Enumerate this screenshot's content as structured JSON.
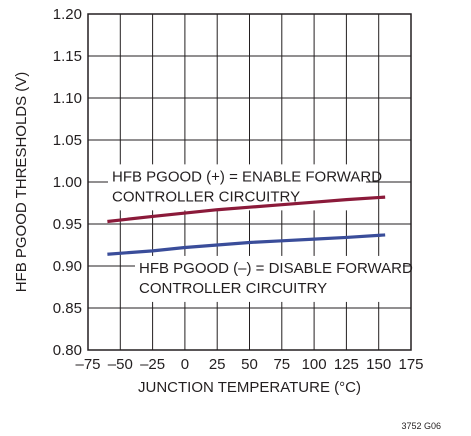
{
  "chart_data": {
    "type": "line",
    "title": "",
    "xlabel": "JUNCTION TEMPERATURE (°C)",
    "ylabel": "HFB PGOOD THRESHOLDS (V)",
    "xlim": [
      -75,
      175
    ],
    "ylim": [
      0.8,
      1.2
    ],
    "x_ticks": [
      -75,
      -50,
      -25,
      0,
      25,
      50,
      75,
      100,
      125,
      150,
      175
    ],
    "x_tick_labels": [
      "–75",
      "–50",
      "–25",
      "0",
      "25",
      "50",
      "75",
      "100",
      "125",
      "150",
      "175"
    ],
    "y_ticks": [
      0.8,
      0.85,
      0.9,
      0.95,
      1.0,
      1.05,
      1.1,
      1.15,
      1.2
    ],
    "y_tick_labels": [
      "0.80",
      "0.85",
      "0.90",
      "0.95",
      "1.00",
      "1.05",
      "1.10",
      "1.15",
      "1.20"
    ],
    "grid": true,
    "series": [
      {
        "color": "#8b1a3a",
        "x": [
          -60,
          -25,
          0,
          25,
          50,
          75,
          100,
          125,
          155
        ],
        "y": [
          0.953,
          0.959,
          0.963,
          0.967,
          0.97,
          0.973,
          0.976,
          0.979,
          0.982
        ]
      },
      {
        "color": "#3a4d9a",
        "x": [
          -60,
          -25,
          0,
          25,
          50,
          75,
          100,
          125,
          155
        ],
        "y": [
          0.914,
          0.918,
          0.922,
          0.925,
          0.928,
          0.93,
          0.932,
          0.934,
          0.937
        ]
      }
    ],
    "annotations": [
      {
        "lines": [
          "HFB PGOOD (+) = ENABLE FORWARD",
          "CONTROLLER CIRCUITRY"
        ],
        "x": -55,
        "y": 1.015
      },
      {
        "lines": [
          "HFB PGOOD (–) = DISABLE FORWARD",
          "CONTROLLER CIRCUITRY"
        ],
        "x": -35,
        "y": 0.903
      }
    ],
    "figure_id": "3752 G06"
  }
}
